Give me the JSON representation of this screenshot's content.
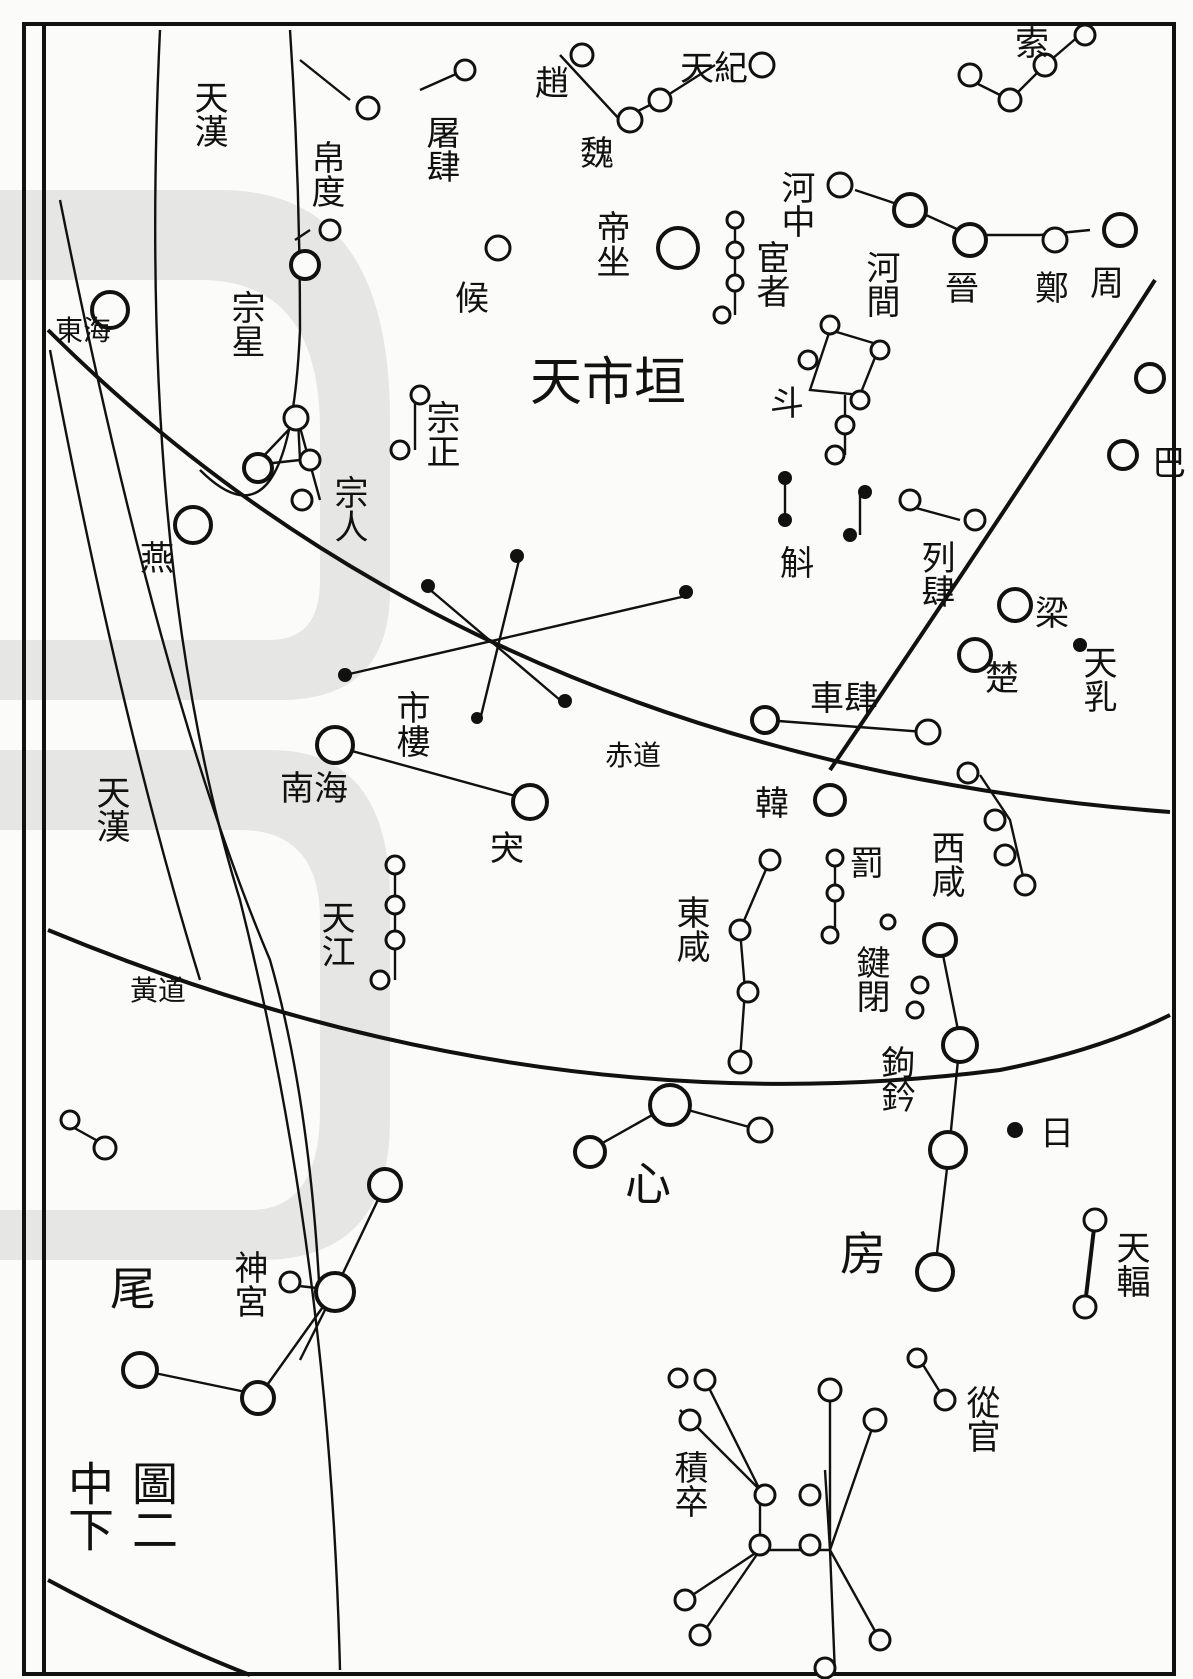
{
  "map_title": {
    "line1": "中下",
    "line2": "圖二"
  },
  "colors": {
    "ink": "#111111",
    "paper": "#fbfbf9",
    "watermark": "#bdbdbd"
  },
  "bands": {
    "milky_way_upper": "天漢",
    "milky_way_lower": "天漢",
    "ecliptic": "黃道",
    "equator": "赤道"
  },
  "enclosure": "天市垣",
  "lunar_mansions": {
    "fang": "房",
    "xin": "心",
    "wei": "尾"
  },
  "labels": {
    "suo": "索",
    "tianji": "天紀",
    "zhao": "趙",
    "wei_state": "魏",
    "tuwei": "屠肆",
    "bodu": "帛度",
    "hezhong": "河中",
    "hejian": "河間",
    "jin": "晉",
    "zheng": "鄭",
    "zhou": "周",
    "dizuo": "帝坐",
    "huanzhe": "宦者",
    "hou": "候",
    "zongxing": "宗星",
    "donghai": "東海",
    "dou": "斗",
    "zongzheng": "宗正",
    "zongren": "宗人",
    "ba": "巴",
    "hu": "斛",
    "liesi": "列肆",
    "yan": "燕",
    "liang": "梁",
    "tianru": "天乳",
    "chu": "楚",
    "cheju": "車肆",
    "shilou": "市樓",
    "nanhai": "南海",
    "han": "韓",
    "xiao": "宊",
    "xixian": "西咸",
    "fa": "罰",
    "tianjiang": "天江",
    "dongxian": "東咸",
    "jianbi": "鍵閉",
    "gouqian": "鉤鈐",
    "ri": "日",
    "shengong": "神宮",
    "tianfu": "天輻",
    "conguan": "從官",
    "jizu": "積卒"
  }
}
